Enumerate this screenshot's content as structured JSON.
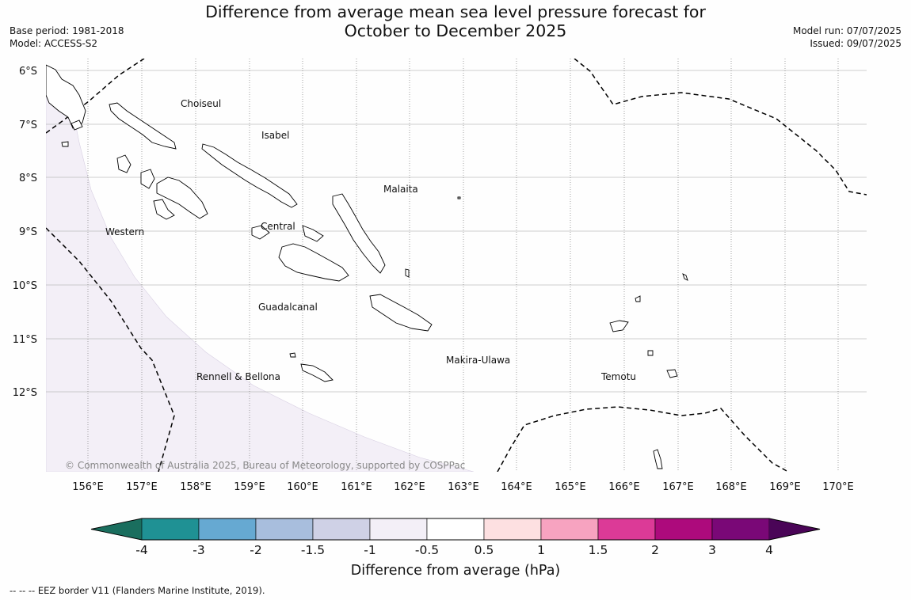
{
  "title_line1": "Difference from average mean sea level pressure forecast for",
  "title_line2": "October to December 2025",
  "base_period": "Base period: 1981-2018",
  "model": "Model: ACCESS-S2",
  "model_run": "Model run: 07/07/2025",
  "issued": "Issued: 09/07/2025",
  "latitude_labels": [
    "6°S",
    "7°S",
    "8°S",
    "9°S",
    "10°S",
    "11°S",
    "12°S"
  ],
  "longitude_labels": [
    "156°E",
    "157°E",
    "158°E",
    "159°E",
    "160°E",
    "161°E",
    "162°E",
    "163°E",
    "164°E",
    "165°E",
    "166°E",
    "167°E",
    "168°E",
    "169°E",
    "170°E"
  ],
  "regions": [
    "Choiseul",
    "Isabel",
    "Malaita",
    "Western",
    "Central",
    "Guadalcanal",
    "Makira-Ulawa",
    "Rennell & Bellona",
    "Temotu"
  ],
  "copyright": "© Commonwealth of Australia 2025, Bureau of Meteorology, supported by COSPPac",
  "colorbar": {
    "tick_labels": [
      "-4",
      "-3",
      "-2",
      "-1.5",
      "-1",
      "-0.5",
      "0.5",
      "1",
      "1.5",
      "2",
      "3",
      "4"
    ],
    "colors": [
      "#1a6e5e",
      "#1f9194",
      "#66a9d2",
      "#a8bedd",
      "#cfd1e6",
      "#f3eff7",
      "#ffffff",
      "#fde0e1",
      "#f7a3c0",
      "#dc3a97",
      "#ad0a7c",
      "#7a0877",
      "#4a0557"
    ],
    "title": "Difference from average (hPa)"
  },
  "footer": "--  --  -- EEZ border V11 (Flanders Marine Institute, 2019).",
  "colors": {
    "shading_light_lilac": "#f3eff7",
    "eez_line": "#000000",
    "grid": "#999999"
  }
}
